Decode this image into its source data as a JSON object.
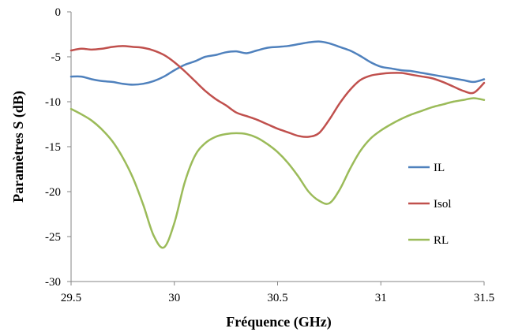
{
  "chart_data": {
    "type": "line",
    "title": "",
    "xlabel": "Fréquence (GHz)",
    "ylabel": "Paramètres S (dB)",
    "xlim": [
      29.5,
      31.5
    ],
    "ylim": [
      -30,
      0
    ],
    "xticks": [
      29.5,
      30,
      30.5,
      31,
      31.5
    ],
    "xtick_labels": [
      "29.5",
      "30",
      "30.5",
      "31",
      "31.5"
    ],
    "yticks": [
      0,
      -5,
      -10,
      -15,
      -20,
      -25,
      -30
    ],
    "ytick_labels": [
      "0",
      "-5",
      "-10",
      "-15",
      "-20",
      "-25",
      "-30"
    ],
    "grid": false,
    "legend_position": "right",
    "series": [
      {
        "name": "IL",
        "color": "#4F81BD",
        "x": [
          29.5,
          29.55,
          29.6,
          29.65,
          29.7,
          29.75,
          29.8,
          29.85,
          29.9,
          29.95,
          30.0,
          30.05,
          30.1,
          30.15,
          30.2,
          30.25,
          30.3,
          30.35,
          30.4,
          30.45,
          30.5,
          30.55,
          30.6,
          30.65,
          30.7,
          30.75,
          30.8,
          30.85,
          30.9,
          30.95,
          31.0,
          31.05,
          31.1,
          31.15,
          31.2,
          31.25,
          31.3,
          31.35,
          31.4,
          31.45,
          31.5
        ],
        "y": [
          -7.2,
          -7.2,
          -7.5,
          -7.7,
          -7.8,
          -8.0,
          -8.1,
          -8.0,
          -7.7,
          -7.2,
          -6.5,
          -5.9,
          -5.5,
          -5.0,
          -4.8,
          -4.5,
          -4.4,
          -4.6,
          -4.3,
          -4.0,
          -3.9,
          -3.8,
          -3.6,
          -3.4,
          -3.3,
          -3.5,
          -3.9,
          -4.3,
          -4.9,
          -5.6,
          -6.1,
          -6.3,
          -6.5,
          -6.6,
          -6.8,
          -7.0,
          -7.2,
          -7.4,
          -7.6,
          -7.8,
          -7.5
        ]
      },
      {
        "name": "Isol",
        "color": "#C0504D",
        "x": [
          29.5,
          29.55,
          29.6,
          29.65,
          29.7,
          29.75,
          29.8,
          29.85,
          29.9,
          29.95,
          30.0,
          30.05,
          30.1,
          30.15,
          30.2,
          30.25,
          30.3,
          30.35,
          30.4,
          30.45,
          30.5,
          30.55,
          30.6,
          30.65,
          30.7,
          30.75,
          30.8,
          30.85,
          30.9,
          30.95,
          31.0,
          31.05,
          31.1,
          31.15,
          31.2,
          31.25,
          31.3,
          31.35,
          31.4,
          31.45,
          31.5
        ],
        "y": [
          -4.3,
          -4.1,
          -4.2,
          -4.1,
          -3.9,
          -3.8,
          -3.9,
          -4.0,
          -4.3,
          -4.8,
          -5.6,
          -6.6,
          -7.7,
          -8.8,
          -9.7,
          -10.4,
          -11.2,
          -11.6,
          -12.0,
          -12.5,
          -13.0,
          -13.4,
          -13.8,
          -13.9,
          -13.5,
          -12.0,
          -10.2,
          -8.7,
          -7.6,
          -7.1,
          -6.9,
          -6.8,
          -6.8,
          -7.0,
          -7.2,
          -7.4,
          -7.8,
          -8.3,
          -8.8,
          -9.0,
          -7.9
        ]
      },
      {
        "name": "RL",
        "color": "#9BBB59",
        "x": [
          29.5,
          29.55,
          29.6,
          29.65,
          29.7,
          29.75,
          29.8,
          29.85,
          29.9,
          29.95,
          30.0,
          30.05,
          30.1,
          30.15,
          30.2,
          30.25,
          30.3,
          30.35,
          30.4,
          30.45,
          30.5,
          30.55,
          30.6,
          30.65,
          30.7,
          30.75,
          30.8,
          30.85,
          30.9,
          30.95,
          31.0,
          31.05,
          31.1,
          31.15,
          31.2,
          31.25,
          31.3,
          31.35,
          31.4,
          31.45,
          31.5
        ],
        "y": [
          -10.8,
          -11.4,
          -12.1,
          -13.1,
          -14.4,
          -16.2,
          -18.5,
          -21.5,
          -24.9,
          -26.2,
          -23.5,
          -19.0,
          -16.0,
          -14.6,
          -13.9,
          -13.6,
          -13.5,
          -13.6,
          -14.0,
          -14.7,
          -15.6,
          -16.8,
          -18.3,
          -20.0,
          -21.0,
          -21.3,
          -19.8,
          -17.5,
          -15.5,
          -14.1,
          -13.2,
          -12.5,
          -11.9,
          -11.4,
          -11.0,
          -10.6,
          -10.3,
          -10.0,
          -9.8,
          -9.6,
          -9.8
        ]
      }
    ]
  }
}
